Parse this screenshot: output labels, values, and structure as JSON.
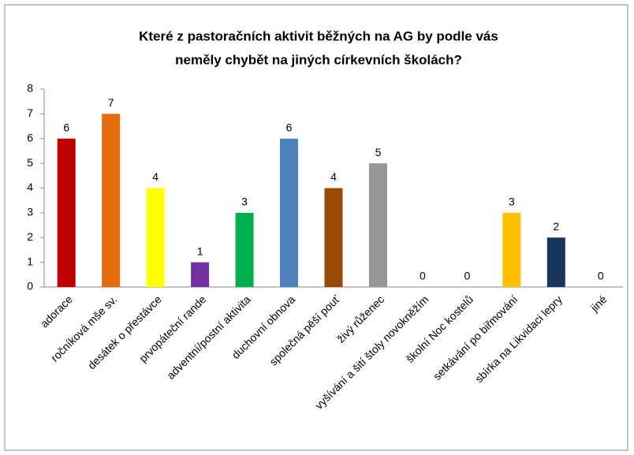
{
  "chart_data": {
    "type": "bar",
    "title": [
      "Které z pastoračních aktivit běžných na AG by podle vás",
      "neměly chybět na jiných církevních školách?"
    ],
    "categories": [
      "adorace",
      "ročníková mše sv.",
      "desátek o přestávce",
      "prvopáteční rande",
      "adventní/postní aktivita",
      "duchovní obnova",
      "společná pěší pouť",
      "živý růženec",
      "vyšívání a šití štoly novokněžím",
      "školní Noc kostelů",
      "setkávání po biřmování",
      "sbírka na Likvidaci lepry",
      "jiné"
    ],
    "values": [
      6,
      7,
      4,
      1,
      3,
      6,
      4,
      5,
      0,
      0,
      3,
      2,
      0
    ],
    "colors": [
      "#c00000",
      "#e46c0a",
      "#ffff00",
      "#7030a0",
      "#00b050",
      "#4f81bd",
      "#984807",
      "#969696",
      "#8064a2",
      "#4bacc6",
      "#ffc000",
      "#17375e",
      "#f79646"
    ],
    "ylim": [
      0,
      8
    ],
    "yticks": [
      0,
      1,
      2,
      3,
      4,
      5,
      6,
      7,
      8
    ],
    "grid": false
  }
}
